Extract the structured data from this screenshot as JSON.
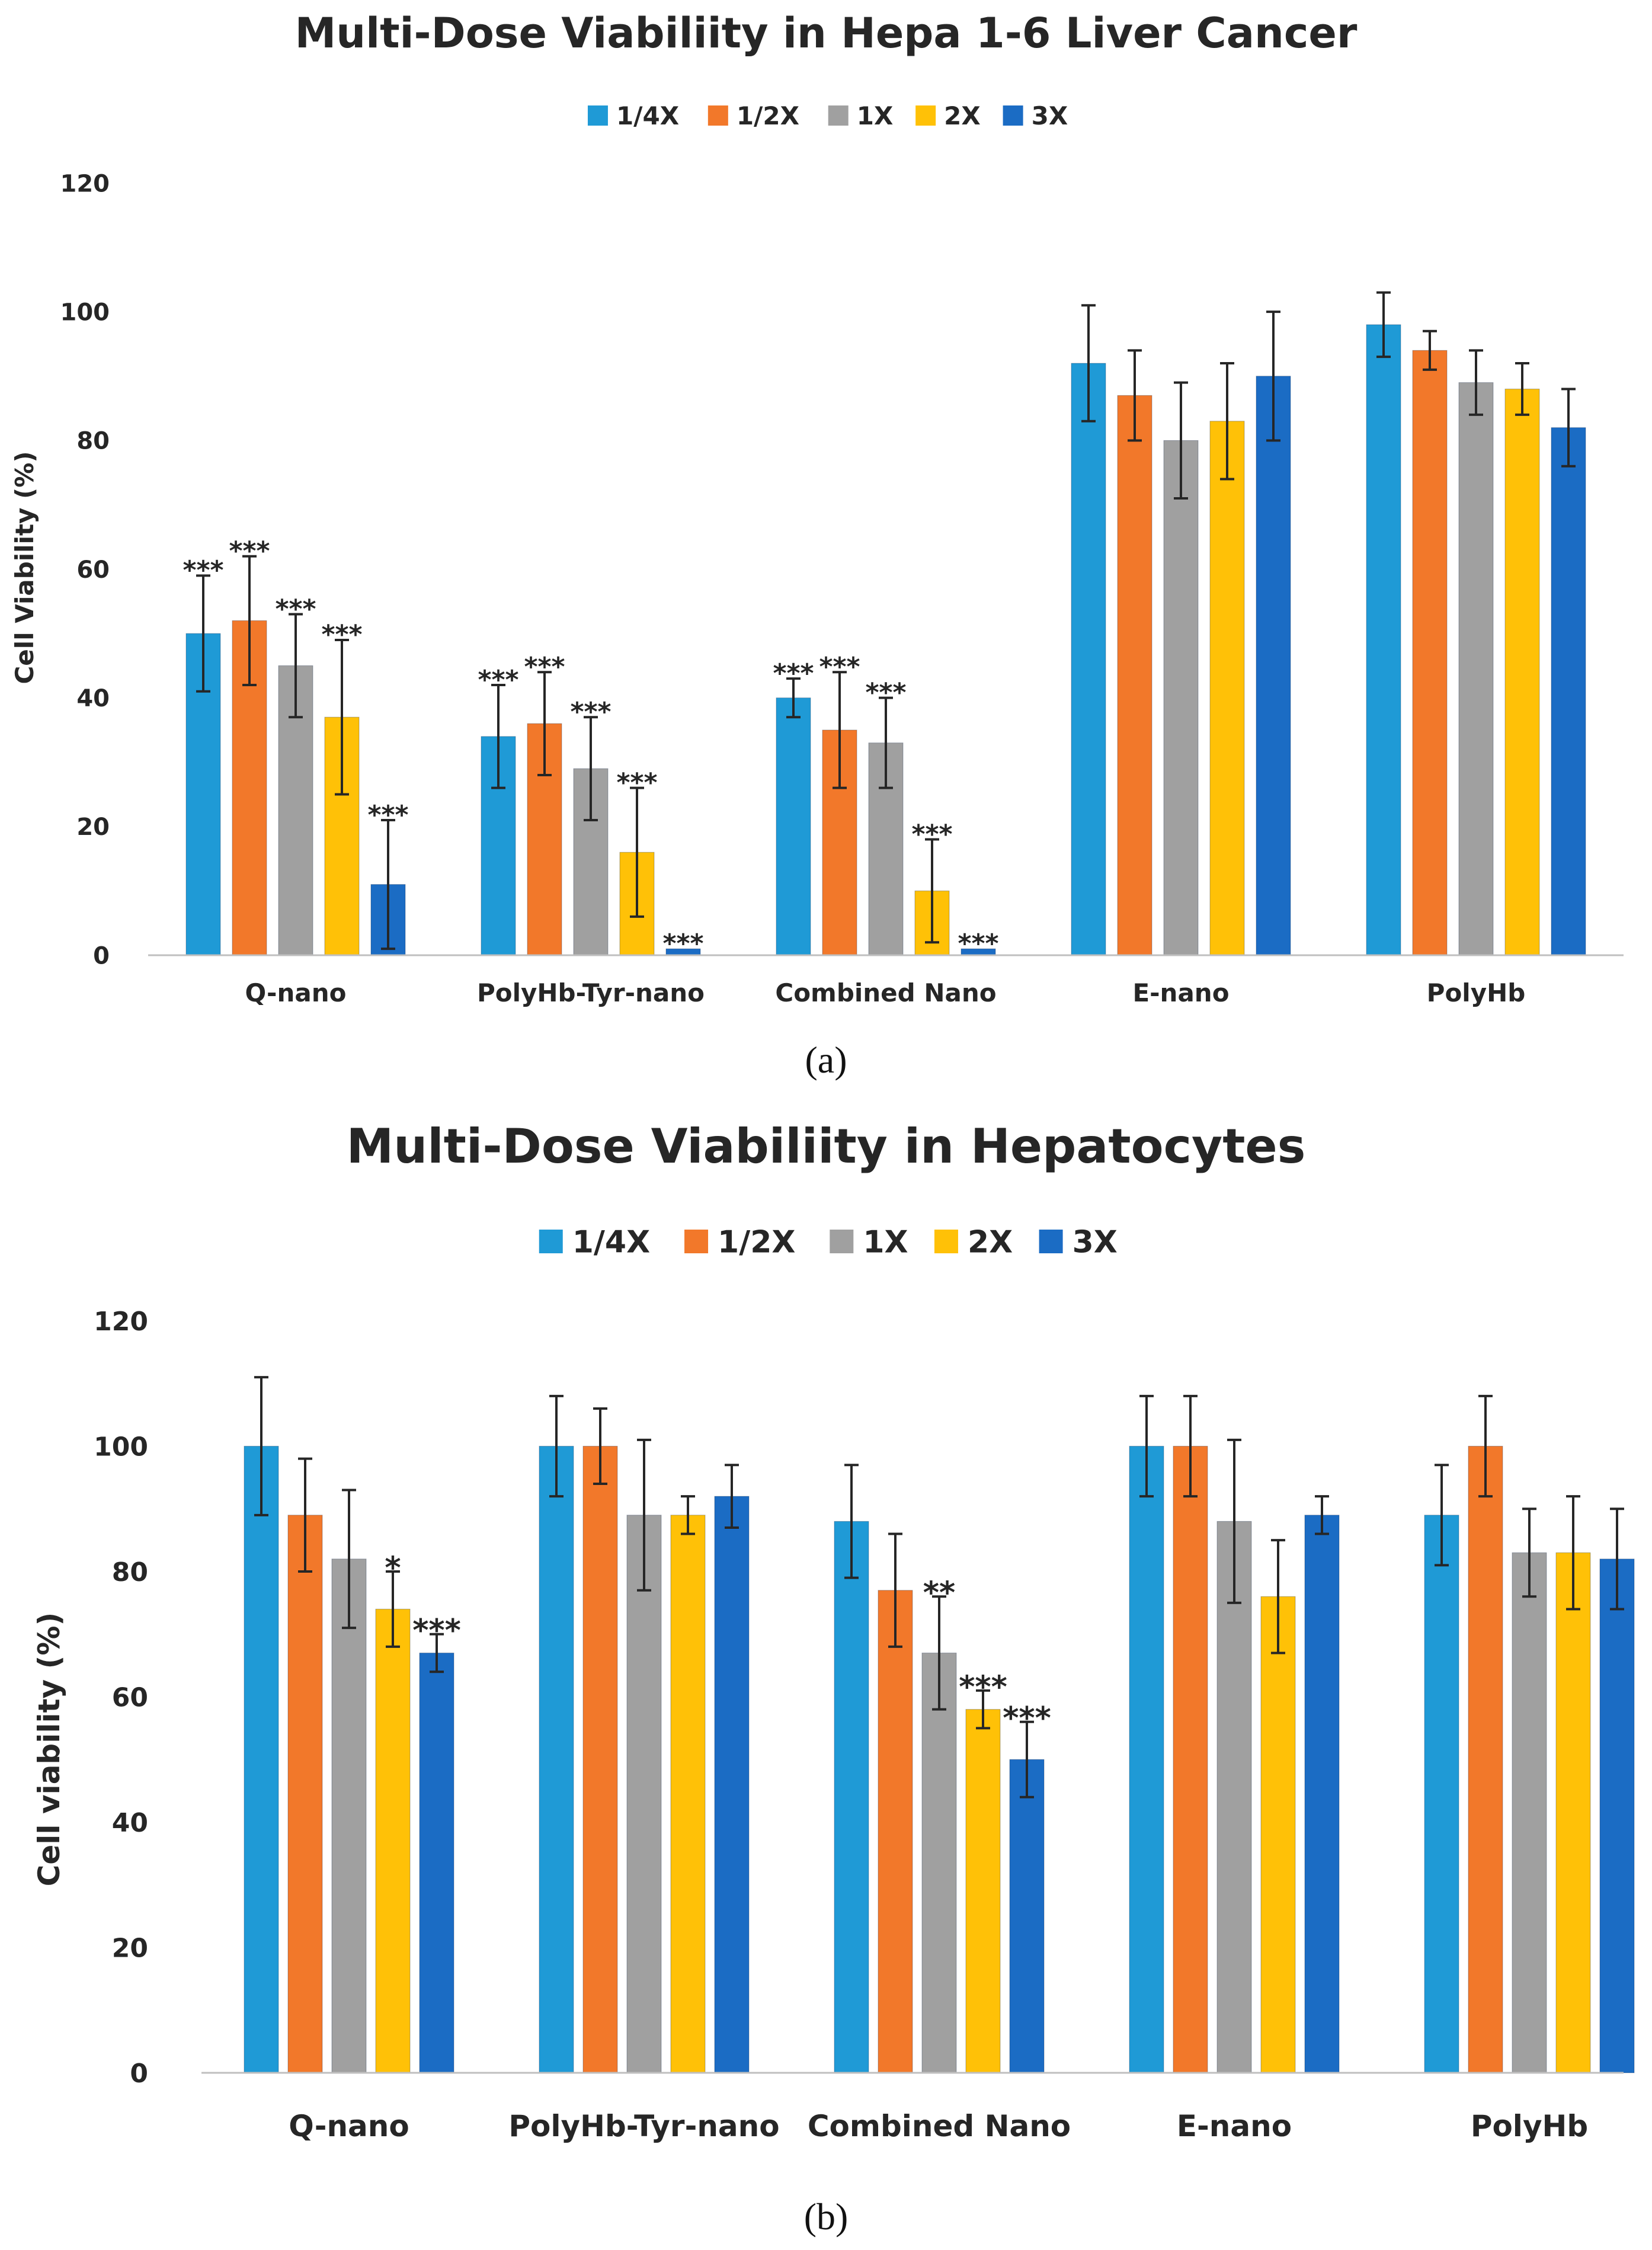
{
  "colors": {
    "quarter_x": "#1F9AD6",
    "half_x": "#F2782A",
    "one_x": "#A0A0A0",
    "two_x": "#FFC107",
    "three_x": "#1B6CC4"
  },
  "chart_data": [
    {
      "type": "bar",
      "title": "Multi-Dose Viabiliity in Hepa 1-6 Liver Cancer",
      "xlabel": "",
      "ylabel": "Cell Viability (%)",
      "ylim": [
        0,
        120
      ],
      "yticks": [
        "0",
        "20",
        "40",
        "60",
        "80",
        "100",
        "120"
      ],
      "legend_position": "top-center",
      "categories": [
        "Q-nano",
        "PolyHb-Tyr-nano",
        "Combined Nano",
        "E-nano",
        "PolyHb"
      ],
      "series": [
        {
          "name": "1/4X",
          "values": [
            50,
            34,
            40,
            92,
            98
          ],
          "errors": [
            9,
            8,
            3,
            9,
            5
          ],
          "sig": [
            "***",
            "***",
            "***",
            "",
            ""
          ]
        },
        {
          "name": "1/2X",
          "values": [
            52,
            36,
            35,
            87,
            94
          ],
          "errors": [
            10,
            8,
            9,
            7,
            3
          ],
          "sig": [
            "***",
            "***",
            "***",
            "",
            ""
          ]
        },
        {
          "name": "1X",
          "values": [
            45,
            29,
            33,
            80,
            89
          ],
          "errors": [
            8,
            8,
            7,
            9,
            5
          ],
          "sig": [
            "***",
            "***",
            "***",
            "",
            ""
          ]
        },
        {
          "name": "2X",
          "values": [
            37,
            16,
            10,
            83,
            88
          ],
          "errors": [
            12,
            10,
            8,
            9,
            4
          ],
          "sig": [
            "***",
            "***",
            "***",
            "",
            ""
          ]
        },
        {
          "name": "3X",
          "values": [
            11,
            1,
            1,
            90,
            82
          ],
          "errors": [
            10,
            0,
            0,
            10,
            6
          ],
          "sig": [
            "***",
            "***",
            "***",
            "",
            ""
          ]
        }
      ],
      "panel_label": "(a)"
    },
    {
      "type": "bar",
      "title": "Multi-Dose Viabiliity in Hepatocytes",
      "xlabel": "",
      "ylabel": "Cell viability (%)",
      "ylim": [
        0,
        120
      ],
      "yticks": [
        "0",
        "20",
        "40",
        "60",
        "80",
        "100",
        "120"
      ],
      "legend_position": "top-center",
      "categories": [
        "Q-nano",
        "PolyHb-Tyr-nano",
        "Combined Nano",
        "E-nano",
        "PolyHb"
      ],
      "series": [
        {
          "name": "1/4X",
          "values": [
            100,
            100,
            88,
            100,
            89
          ],
          "errors": [
            11,
            8,
            9,
            8,
            8
          ],
          "sig": [
            "",
            "",
            "",
            "",
            ""
          ]
        },
        {
          "name": "1/2X",
          "values": [
            89,
            100,
            77,
            100,
            100
          ],
          "errors": [
            9,
            6,
            9,
            8,
            8
          ],
          "sig": [
            "",
            "",
            "",
            "",
            ""
          ]
        },
        {
          "name": "1X",
          "values": [
            82,
            89,
            67,
            88,
            83
          ],
          "errors": [
            11,
            12,
            9,
            13,
            7
          ],
          "sig": [
            "",
            "",
            "**",
            "",
            ""
          ]
        },
        {
          "name": "2X",
          "values": [
            74,
            89,
            58,
            76,
            83
          ],
          "errors": [
            6,
            3,
            3,
            9,
            9
          ],
          "sig": [
            "*",
            "",
            "***",
            "",
            ""
          ]
        },
        {
          "name": "3X",
          "values": [
            67,
            92,
            50,
            89,
            82
          ],
          "errors": [
            3,
            5,
            6,
            3,
            8
          ],
          "sig": [
            "***",
            "",
            "***",
            "",
            ""
          ]
        }
      ],
      "panel_label": "(b)"
    }
  ]
}
